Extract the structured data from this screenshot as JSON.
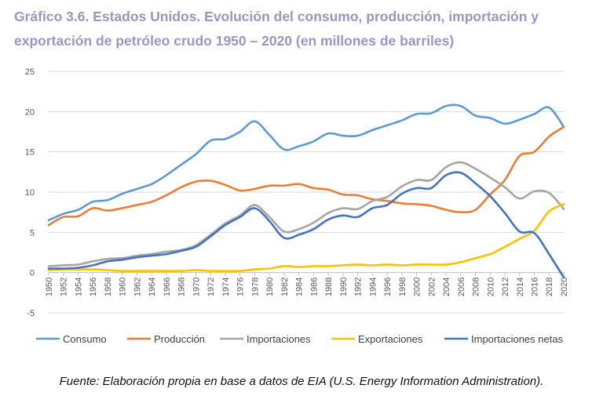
{
  "title_line1": "Gráfico 3.6. Estados Unidos. Evolución del consumo, producción, importación y",
  "title_line2": "exportación de petróleo crudo 1950 – 2020 (en millones de barriles)",
  "source": "Fuente: Elaboración propia en base a datos de EIA (U.S. Energy Information Administration).",
  "chart_data": {
    "type": "line",
    "title": "Estados Unidos. Evolución del consumo, producción, importación y exportación de petróleo crudo 1950 – 2020 (en millones de barriles)",
    "xlabel": "",
    "ylabel": "",
    "ylim": [
      -5,
      25
    ],
    "yticks": [
      -5,
      0,
      5,
      10,
      15,
      20,
      25
    ],
    "xtick_labels": [
      "1950",
      "1952",
      "1954",
      "1956",
      "1958",
      "1960",
      "1962",
      "1964",
      "1966",
      "1968",
      "1970",
      "1972",
      "1974",
      "1976",
      "1978",
      "1980",
      "1982",
      "1984",
      "1986",
      "1988",
      "1990",
      "1992",
      "1994",
      "1996",
      "1998",
      "2000",
      "2002",
      "2004",
      "2006",
      "2008",
      "2010",
      "2012",
      "2014",
      "2016",
      "2018",
      "2020"
    ],
    "grid": "horizontal",
    "legend_position": "bottom",
    "x": [
      1950,
      1952,
      1954,
      1956,
      1958,
      1960,
      1962,
      1964,
      1966,
      1968,
      1970,
      1972,
      1974,
      1976,
      1978,
      1980,
      1982,
      1984,
      1986,
      1988,
      1990,
      1992,
      1994,
      1996,
      1998,
      2000,
      2002,
      2004,
      2006,
      2008,
      2010,
      2012,
      2014,
      2016,
      2018,
      2020
    ],
    "series": [
      {
        "name": "Consumo",
        "color": "#5b9bd5",
        "values": [
          6.5,
          7.3,
          7.8,
          8.8,
          9.0,
          9.8,
          10.4,
          11.0,
          12.1,
          13.4,
          14.7,
          16.4,
          16.6,
          17.5,
          18.8,
          17.1,
          15.3,
          15.7,
          16.3,
          17.3,
          17.0,
          17.0,
          17.7,
          18.3,
          18.9,
          19.7,
          19.8,
          20.7,
          20.7,
          19.5,
          19.2,
          18.5,
          19.0,
          19.7,
          20.5,
          18.1
        ]
      },
      {
        "name": "Producción",
        "color": "#ed7d31",
        "values": [
          5.9,
          6.9,
          7.0,
          8.0,
          7.7,
          8.0,
          8.4,
          8.8,
          9.6,
          10.6,
          11.3,
          11.4,
          10.9,
          10.2,
          10.4,
          10.8,
          10.8,
          11.0,
          10.5,
          10.3,
          9.7,
          9.6,
          9.1,
          8.9,
          8.6,
          8.5,
          8.3,
          7.8,
          7.5,
          7.8,
          9.7,
          11.5,
          14.5,
          15.0,
          16.9,
          18.1
        ]
      },
      {
        "name": "Importaciones",
        "color": "#a5a5a5",
        "values": [
          0.8,
          0.9,
          1.0,
          1.4,
          1.7,
          1.8,
          2.1,
          2.3,
          2.6,
          2.8,
          3.4,
          4.7,
          6.1,
          7.1,
          8.4,
          6.9,
          5.1,
          5.4,
          6.2,
          7.4,
          8.0,
          7.9,
          8.9,
          9.4,
          10.7,
          11.5,
          11.5,
          13.1,
          13.7,
          12.9,
          11.8,
          10.6,
          9.2,
          10.1,
          9.9,
          7.9
        ]
      },
      {
        "name": "Exportaciones",
        "color": "#ffc000",
        "values": [
          0.3,
          0.4,
          0.4,
          0.4,
          0.3,
          0.2,
          0.2,
          0.2,
          0.2,
          0.2,
          0.3,
          0.2,
          0.2,
          0.2,
          0.4,
          0.5,
          0.8,
          0.7,
          0.8,
          0.8,
          0.9,
          1.0,
          0.9,
          1.0,
          0.9,
          1.0,
          1.0,
          1.0,
          1.3,
          1.8,
          2.3,
          3.2,
          4.2,
          5.2,
          7.6,
          8.5
        ]
      },
      {
        "name": "Importaciones netas",
        "color": "#4472c4",
        "values": [
          0.5,
          0.5,
          0.6,
          0.9,
          1.4,
          1.6,
          1.9,
          2.1,
          2.3,
          2.7,
          3.2,
          4.5,
          5.9,
          6.9,
          8.0,
          6.4,
          4.3,
          4.7,
          5.4,
          6.6,
          7.1,
          6.9,
          8.0,
          8.4,
          9.8,
          10.5,
          10.5,
          12.1,
          12.4,
          11.1,
          9.5,
          7.4,
          5.1,
          4.9,
          2.3,
          -0.6
        ]
      }
    ]
  }
}
